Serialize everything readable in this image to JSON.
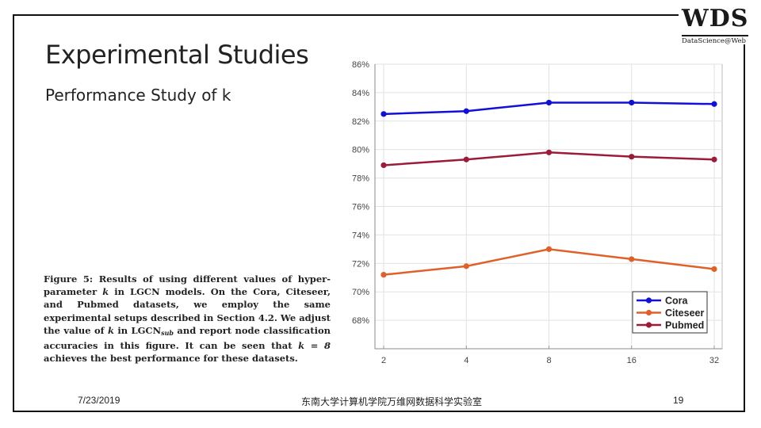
{
  "logo": {
    "main": "WDS",
    "sub": "DataScience@Web"
  },
  "slide": {
    "title": "Experimental Studies",
    "subtitle": "Performance Study of k"
  },
  "caption": {
    "label": "Figure 5:",
    "part1": "Results of using different values of hyper-parameter",
    "k1": "k",
    "part2": "in LGCN models. On the Cora, Citeseer, and Pubmed datasets, we employ the same experimental setups described in Section 4.2. We adjust the value of",
    "k2": "k",
    "part3": "in LGCN",
    "sub": "sub",
    "part4": "and report node classification accuracies in this figure. It can be seen that",
    "k3": "k = 8",
    "part5": "achieves the best performance for these datasets."
  },
  "footer": {
    "date": "7/23/2019",
    "center": "东南大学计算机学院万维网数据科学实验室",
    "page": "19"
  },
  "chart_data": {
    "type": "line",
    "categories": [
      "2",
      "4",
      "8",
      "16",
      "32"
    ],
    "series": [
      {
        "name": "Cora",
        "color": "#1010d8",
        "values": [
          82.5,
          82.7,
          83.3,
          83.3,
          83.2
        ]
      },
      {
        "name": "Citeseer",
        "color": "#e0602a",
        "values": [
          71.2,
          71.8,
          73.0,
          72.3,
          71.6
        ]
      },
      {
        "name": "Pubmed",
        "color": "#9c1b38",
        "values": [
          78.9,
          79.3,
          79.8,
          79.5,
          79.3
        ]
      }
    ],
    "yticks": [
      "68%",
      "70%",
      "72%",
      "74%",
      "76%",
      "78%",
      "80%",
      "82%",
      "84%",
      "86%"
    ],
    "ylim": [
      66,
      86
    ],
    "grid": true,
    "legend": "bottom-right"
  }
}
